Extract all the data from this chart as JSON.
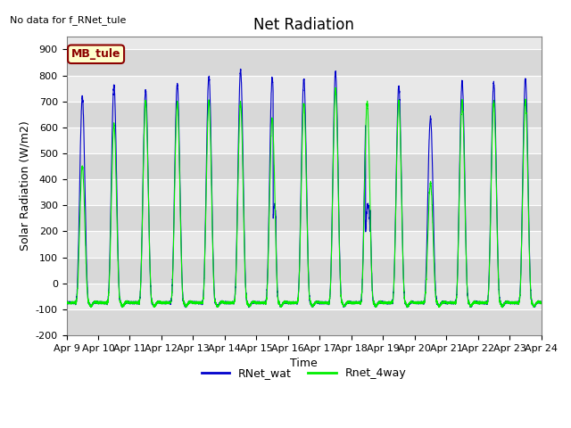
{
  "title": "Net Radiation",
  "xlabel": "Time",
  "ylabel": "Solar Radiation (W/m2)",
  "ylim": [
    -200,
    950
  ],
  "yticks": [
    -200,
    -100,
    0,
    100,
    200,
    300,
    400,
    500,
    600,
    700,
    800,
    900
  ],
  "xtick_labels": [
    "Apr 9",
    "Apr 10",
    "Apr 11",
    "Apr 12",
    "Apr 13",
    "Apr 14",
    "Apr 15",
    "Apr 16",
    "Apr 17",
    "Apr 18",
    "Apr 19",
    "Apr 20",
    "Apr 21",
    "Apr 22",
    "Apr 23",
    "Apr 24"
  ],
  "color_blue": "#0000CC",
  "color_green": "#00EE00",
  "legend_labels": [
    "RNet_wat",
    "Rnet_4way"
  ],
  "annotation_text": "No data for f_RNet_tule",
  "box_label": "MB_tule",
  "box_facecolor": "#FFFFCC",
  "box_edgecolor": "#8B0000",
  "box_textcolor": "#8B0000",
  "plot_bg": "#DCDCDC",
  "fig_bg": "#FFFFFF",
  "title_fontsize": 12,
  "axis_fontsize": 9,
  "tick_fontsize": 8,
  "peaks_blue": [
    715,
    760,
    740,
    770,
    800,
    820,
    790,
    785,
    810,
    765,
    760,
    640,
    775,
    770,
    790
  ],
  "peaks_green": [
    450,
    610,
    700,
    695,
    700,
    695,
    635,
    695,
    750,
    695,
    700,
    385,
    700,
    700,
    705
  ],
  "night_blue": -75,
  "night_green": -75,
  "night_min_blue": -110,
  "night_min_green": -110
}
